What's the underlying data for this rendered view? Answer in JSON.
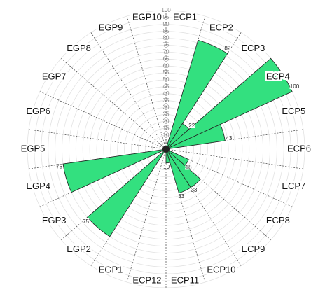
{
  "chart_data": {
    "type": "polar-bar",
    "categories": [
      "ECP1",
      "ECP2",
      "ECP3",
      "ECP4",
      "ECP5",
      "ECP6",
      "ECP7",
      "ECP8",
      "ECP9",
      "ECP10",
      "ECP11",
      "ECP12",
      "EGP1",
      "EGP2",
      "EGP3",
      "EGP4",
      "EGP5",
      "EGP6",
      "EGP7",
      "EGP8",
      "EGP9",
      "EGP10"
    ],
    "values": [
      0,
      82,
      22,
      100,
      43,
      0,
      0,
      18,
      33,
      33,
      10,
      0,
      0,
      75,
      0,
      75,
      0,
      0,
      0,
      0,
      0,
      0
    ],
    "color": "#33e07f",
    "rlim": [
      0,
      100
    ],
    "rticks": [
      0,
      5,
      10,
      15,
      20,
      25,
      30,
      35,
      40,
      45,
      50,
      55,
      60,
      65,
      70,
      75,
      80,
      85,
      90,
      95,
      100
    ],
    "grid": true
  }
}
